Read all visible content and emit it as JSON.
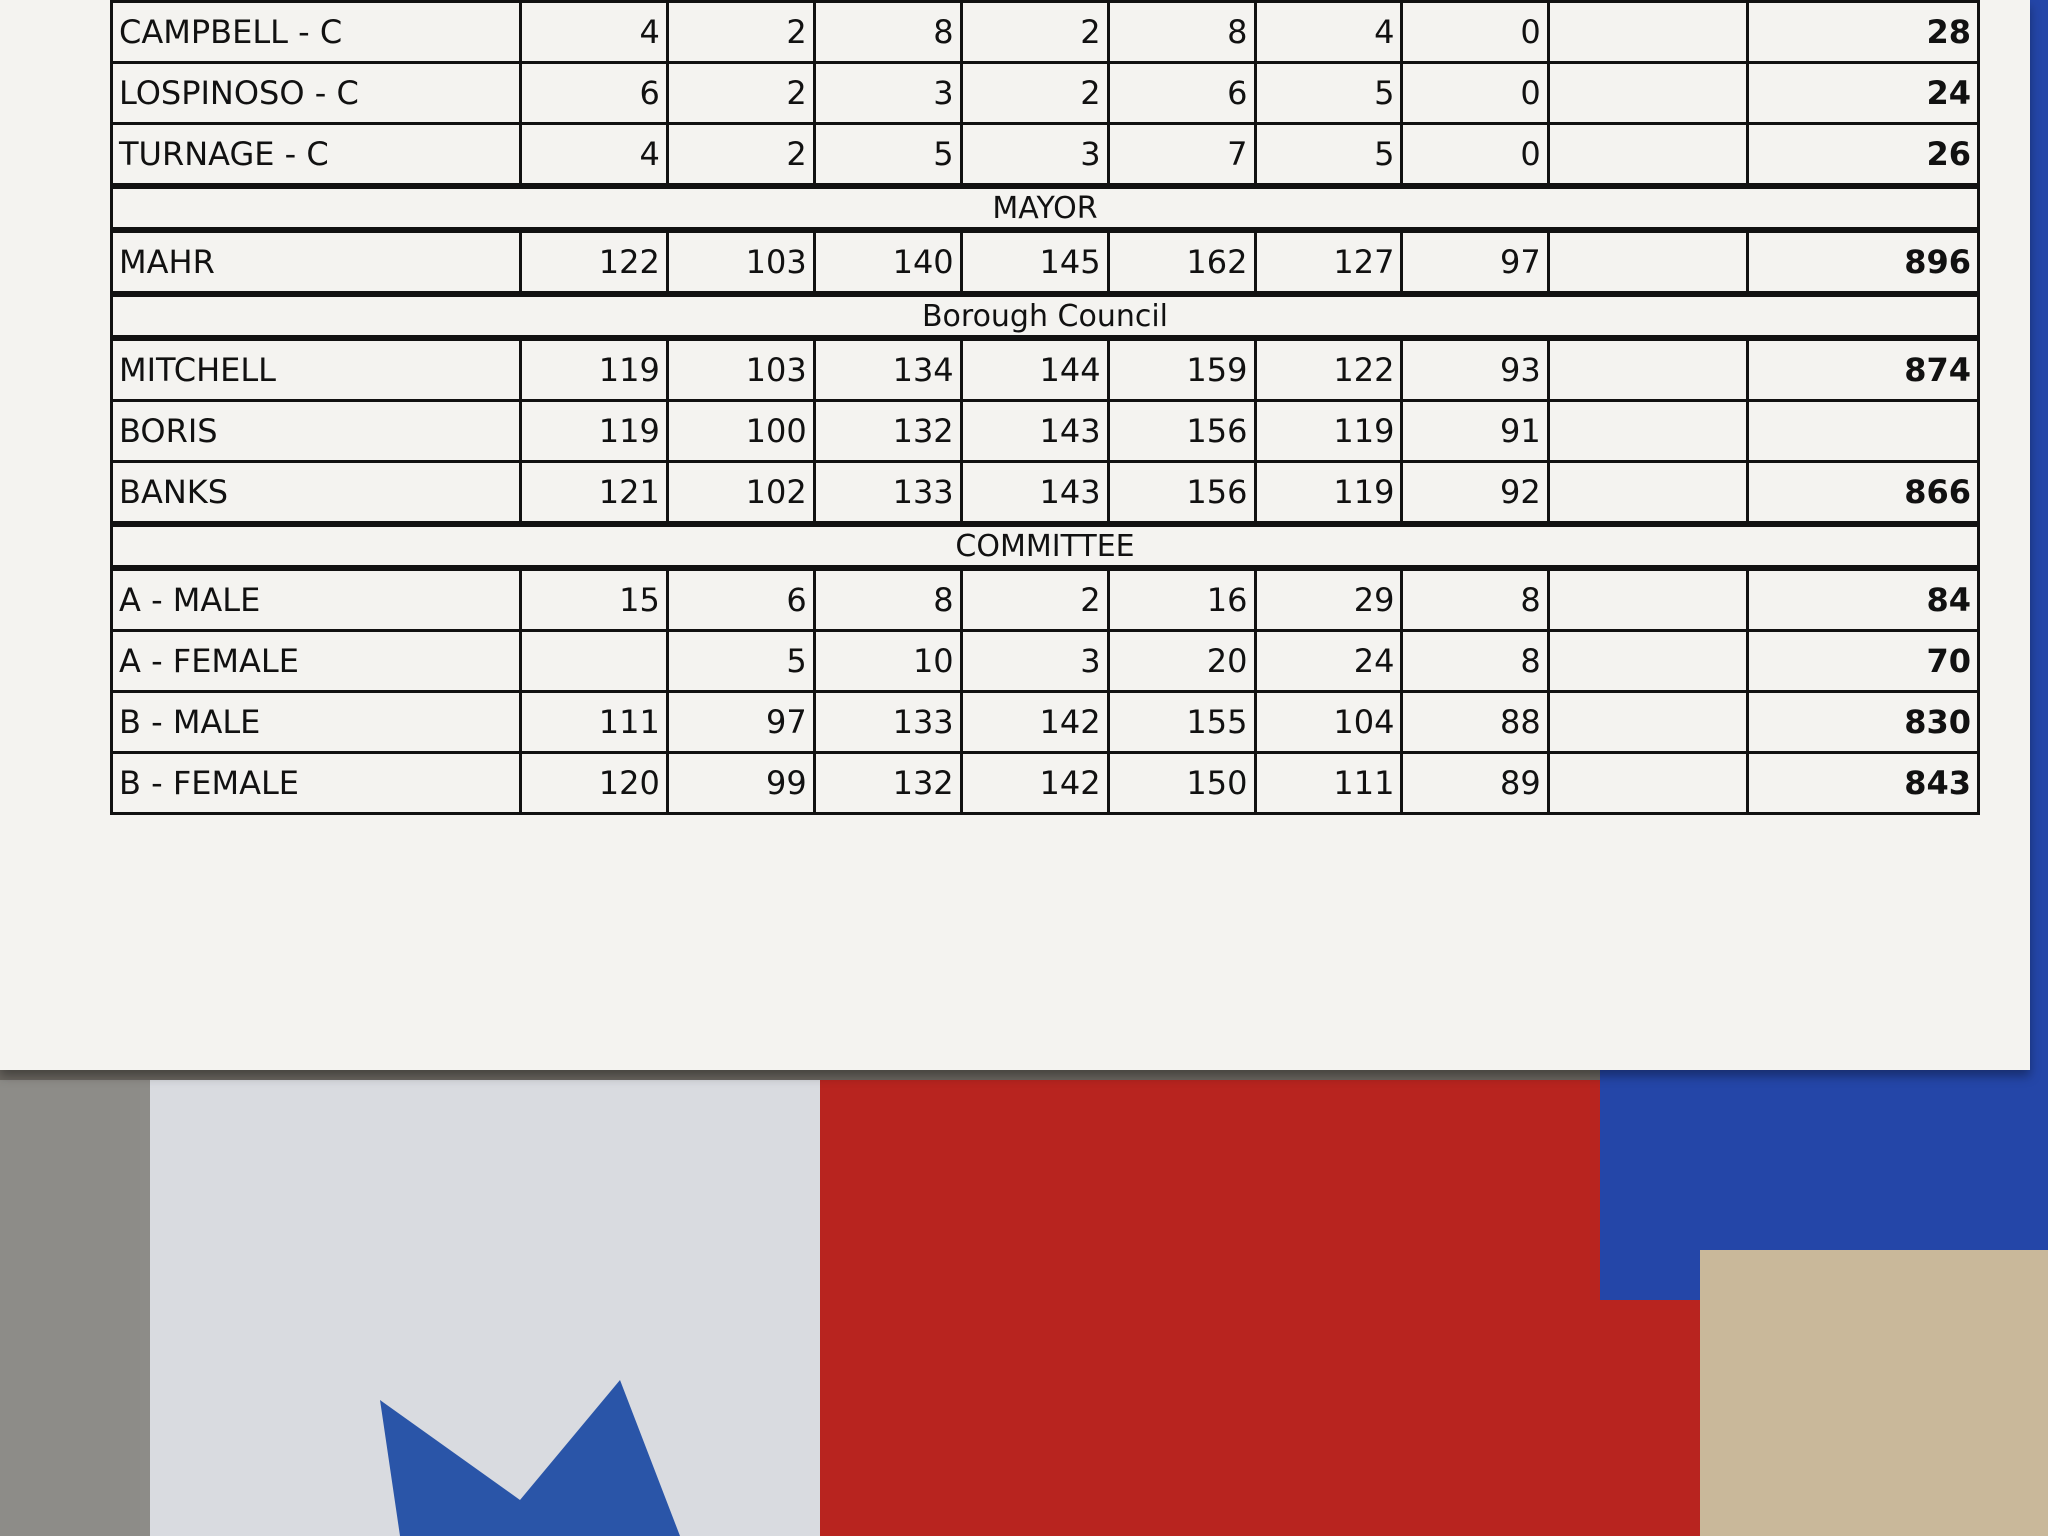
{
  "sections": [
    {
      "rows": [
        {
          "name": "CAMPBELL - C",
          "votes": [
            4,
            2,
            8,
            2,
            8,
            4,
            0
          ],
          "total": 28
        },
        {
          "name": "LOSPINOSO - C",
          "votes": [
            6,
            2,
            3,
            2,
            6,
            5,
            0
          ],
          "total": 24
        },
        {
          "name": "TURNAGE - C",
          "votes": [
            4,
            2,
            5,
            3,
            7,
            5,
            0
          ],
          "total": 26
        }
      ]
    },
    {
      "title": "MAYOR",
      "rows": [
        {
          "name": "MAHR",
          "votes": [
            122,
            103,
            140,
            145,
            162,
            127,
            97
          ],
          "total": 896
        }
      ]
    },
    {
      "title": "Borough Council",
      "rows": [
        {
          "name": "MITCHELL",
          "votes": [
            119,
            103,
            134,
            144,
            159,
            122,
            93
          ],
          "total": 874
        },
        {
          "name": "BORIS",
          "votes": [
            119,
            100,
            132,
            143,
            156,
            119,
            91
          ]
        },
        {
          "name": "BANKS",
          "votes": [
            121,
            102,
            133,
            143,
            156,
            119,
            92
          ],
          "total": 866
        }
      ]
    },
    {
      "title": "COMMITTEE",
      "rows": [
        {
          "name": "A - MALE",
          "votes": [
            15,
            6,
            8,
            2,
            16,
            29,
            8
          ],
          "total": 84
        },
        {
          "name": "A - FEMALE",
          "votes": [
            null,
            5,
            10,
            3,
            20,
            24,
            8
          ],
          "total": 70
        },
        {
          "name": "B - MALE",
          "votes": [
            111,
            97,
            133,
            142,
            155,
            104,
            88
          ],
          "total": 830
        },
        {
          "name": "B - FEMALE",
          "votes": [
            120,
            99,
            132,
            142,
            150,
            111,
            89
          ],
          "total": 843
        }
      ]
    }
  ]
}
